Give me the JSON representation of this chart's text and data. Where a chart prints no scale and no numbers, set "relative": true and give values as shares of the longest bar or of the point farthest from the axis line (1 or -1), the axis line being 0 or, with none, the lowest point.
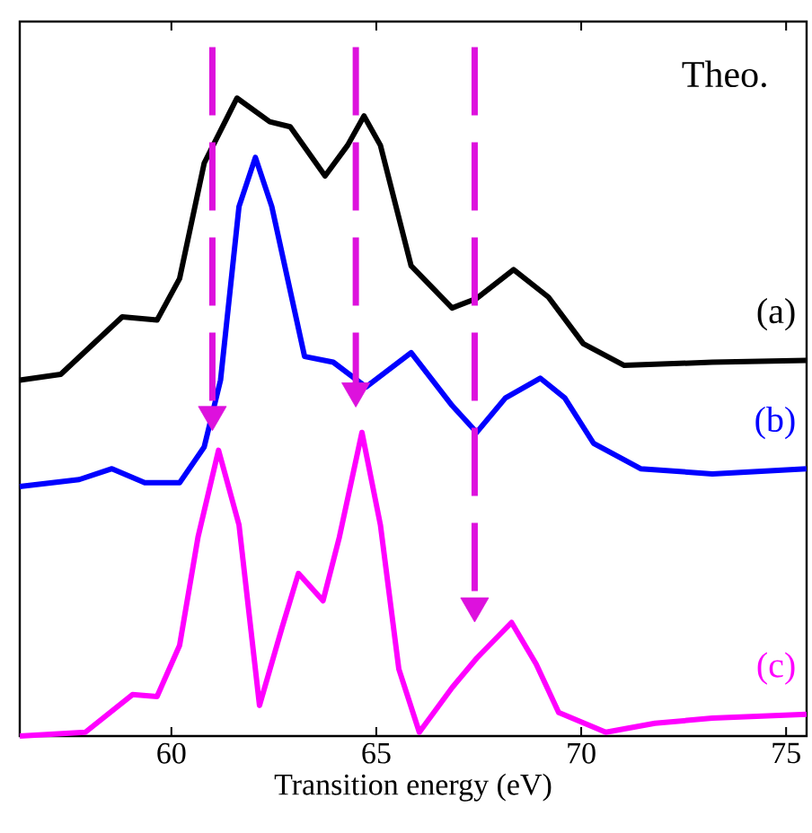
{
  "chart_data": {
    "type": "line",
    "relative": true,
    "xlabel": "Transition energy (eV)",
    "xlim": [
      56.3,
      75.5
    ],
    "xticks": [
      60,
      65,
      70,
      75
    ],
    "annotations": [
      "Theo."
    ],
    "ref_lines": [
      {
        "axis": "x",
        "value": 61.0,
        "color": "#dd11dd",
        "line_style": "dashed"
      },
      {
        "axis": "x",
        "value": 64.5,
        "color": "#dd11dd",
        "line_style": "dashed"
      },
      {
        "axis": "x",
        "value": 67.4,
        "color": "#dd11dd",
        "line_style": "dashed"
      }
    ],
    "series": [
      {
        "name": "(a)",
        "color": "#000000",
        "x": [
          56.3,
          57.3,
          58.8,
          59.65,
          60.2,
          60.8,
          61.6,
          62.4,
          62.9,
          63.75,
          64.3,
          64.7,
          65.1,
          65.85,
          66.85,
          67.45,
          68.35,
          69.2,
          70.05,
          71.05,
          73.2,
          75.5
        ],
        "values": [
          0.558,
          0.567,
          0.657,
          0.652,
          0.717,
          0.898,
          1.0,
          0.963,
          0.955,
          0.878,
          0.926,
          0.972,
          0.926,
          0.737,
          0.671,
          0.686,
          0.731,
          0.688,
          0.615,
          0.581,
          0.586,
          0.589
        ]
      },
      {
        "name": "(b)",
        "color": "#0000ff",
        "x": [
          56.3,
          57.75,
          58.55,
          59.35,
          60.2,
          60.8,
          61.2,
          61.65,
          62.05,
          62.45,
          63.25,
          63.95,
          64.75,
          65.85,
          66.85,
          67.45,
          68.15,
          69.0,
          69.6,
          70.3,
          71.45,
          73.2,
          75.5
        ],
        "values": [
          0.391,
          0.402,
          0.419,
          0.397,
          0.397,
          0.453,
          0.558,
          0.83,
          0.907,
          0.83,
          0.595,
          0.586,
          0.547,
          0.601,
          0.518,
          0.476,
          0.53,
          0.561,
          0.53,
          0.459,
          0.419,
          0.411,
          0.419
        ]
      },
      {
        "type": "scatter",
        "marker": "triangle",
        "color": "#dd11dd",
        "x": [
          61.0,
          64.5,
          67.4
        ],
        "values": [
          0.504,
          0.541,
          0.204
        ]
      },
      {
        "name": "(c)",
        "color": "#ff00ff",
        "x": [
          56.3,
          57.9,
          59.05,
          59.65,
          60.2,
          60.65,
          61.15,
          61.65,
          62.15,
          62.7,
          63.1,
          63.7,
          64.1,
          64.65,
          65.1,
          65.55,
          66.05,
          66.85,
          67.45,
          68.3,
          68.9,
          69.45,
          70.6,
          71.8,
          73.2,
          75.5
        ],
        "values": [
          0.0,
          0.006,
          0.065,
          0.062,
          0.142,
          0.312,
          0.448,
          0.331,
          0.048,
          0.17,
          0.255,
          0.212,
          0.312,
          0.476,
          0.331,
          0.105,
          0.006,
          0.076,
          0.122,
          0.178,
          0.113,
          0.037,
          0.006,
          0.02,
          0.028,
          0.034
        ]
      }
    ]
  }
}
